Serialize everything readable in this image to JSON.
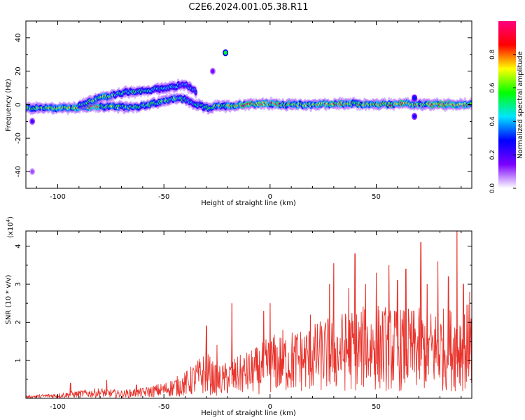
{
  "figure_title": "C2E6.2024.001.05.38.R11",
  "chart_data": [
    {
      "type": "heatmap",
      "xlabel": "Height of straight line (km)",
      "ylabel": "Frequency (Hz)",
      "xlim": [
        -115,
        95
      ],
      "ylim": [
        -50,
        50
      ],
      "xticks": [
        -100,
        -50,
        0,
        50
      ],
      "xtick_labels": [
        "-100",
        "-50",
        "0",
        "50"
      ],
      "yticks": [
        -40,
        -20,
        0,
        20,
        40
      ],
      "ytick_labels": [
        "-40",
        "-20",
        "0",
        "20",
        "40"
      ],
      "colorbar": {
        "label": "Normalized spectral amplitude",
        "range": [
          0,
          1
        ],
        "ticks": [
          0.0,
          0.2,
          0.4,
          0.6,
          0.8
        ],
        "tick_labels": [
          "0.0",
          "0.2",
          "0.4",
          "0.6",
          "0.8"
        ],
        "colormap": [
          "#ffffff",
          "#7b00ff",
          "#0000ff",
          "#00e5ff",
          "#00ff00",
          "#ffff00",
          "#ff0000",
          "#ff0080"
        ]
      },
      "traces": [
        {
          "x": [
            -115,
            -100,
            -90,
            -80,
            -70,
            -60,
            -50,
            -45,
            -40,
            -35,
            -30,
            -25,
            -20,
            -10,
            0,
            10,
            20,
            30,
            40,
            50,
            60,
            70,
            80,
            90,
            95
          ],
          "y": [
            -2,
            -2,
            -1.5,
            -1,
            -1.5,
            -1,
            2,
            4,
            3,
            0,
            -2,
            -1,
            -1,
            0.5,
            0.5,
            0,
            0,
            0.5,
            0.5,
            0,
            0.5,
            0,
            0,
            0,
            0
          ],
          "amp": [
            0.6,
            0.65,
            0.8,
            0.7,
            0.55,
            0.6,
            0.65,
            0.6,
            0.5,
            0.45,
            0.55,
            0.6,
            0.7,
            0.85,
            0.75,
            0.7,
            0.7,
            0.8,
            0.7,
            0.75,
            0.8,
            0.7,
            0.9,
            0.8,
            0.7
          ]
        },
        {
          "x": [
            -90,
            -80,
            -70,
            -60,
            -50,
            -40,
            -35
          ],
          "y": [
            0,
            4,
            7,
            8,
            10,
            12,
            8
          ],
          "amp": [
            0.5,
            0.65,
            0.55,
            0.5,
            0.45,
            0.4,
            0.35
          ]
        }
      ],
      "spots": [
        {
          "x": -21,
          "y": 31,
          "amp": 0.55
        },
        {
          "x": 68,
          "y": 4,
          "amp": 0.3
        },
        {
          "x": 68,
          "y": -7,
          "amp": 0.25
        },
        {
          "x": -112,
          "y": -10,
          "amp": 0.2
        },
        {
          "x": -112,
          "y": -40,
          "amp": 0.1
        },
        {
          "x": -27,
          "y": 20,
          "amp": 0.15
        }
      ]
    },
    {
      "type": "line",
      "xlabel": "Height of straight line (km)",
      "ylabel": "SNR (10 * v/v)",
      "yscale_label": "(x10",
      "yscale_exponent": "4",
      "yscale_close": ")",
      "xlim": [
        -115,
        95
      ],
      "ylim": [
        0,
        4.4
      ],
      "xticks": [
        -100,
        -50,
        0,
        50
      ],
      "xtick_labels": [
        "-100",
        "-50",
        "0",
        "50"
      ],
      "yticks": [
        1,
        2,
        3,
        4
      ],
      "ytick_labels": [
        "1",
        "2",
        "3",
        "4"
      ],
      "color": "#e8332c",
      "envelope": {
        "x": [
          -115,
          -100,
          -90,
          -80,
          -70,
          -60,
          -50,
          -40,
          -35,
          -30,
          -25,
          -20,
          -15,
          -10,
          -5,
          0,
          10,
          20,
          30,
          40,
          50,
          60,
          70,
          80,
          90,
          95
        ],
        "y": [
          0.05,
          0.1,
          0.15,
          0.2,
          0.15,
          0.2,
          0.3,
          0.5,
          0.7,
          0.9,
          0.6,
          0.7,
          0.8,
          0.9,
          1.0,
          1.2,
          1.3,
          1.4,
          1.6,
          1.7,
          1.8,
          1.7,
          1.7,
          1.7,
          1.8,
          1.8
        ]
      },
      "peaks": [
        {
          "x": -94,
          "y": 0.4
        },
        {
          "x": -77,
          "y": 0.48
        },
        {
          "x": -63,
          "y": 0.35
        },
        {
          "x": -30,
          "y": 1.9
        },
        {
          "x": -25,
          "y": 1.4
        },
        {
          "x": -18,
          "y": 2.5
        },
        {
          "x": 0,
          "y": 2.5
        },
        {
          "x": -3,
          "y": 2.3
        },
        {
          "x": 6,
          "y": 1.8
        },
        {
          "x": 19,
          "y": 2.2
        },
        {
          "x": 28,
          "y": 3.0
        },
        {
          "x": 30,
          "y": 3.55
        },
        {
          "x": 37,
          "y": 2.9
        },
        {
          "x": 40,
          "y": 3.8
        },
        {
          "x": 45,
          "y": 3.0
        },
        {
          "x": 50,
          "y": 3.3
        },
        {
          "x": 56,
          "y": 3.5
        },
        {
          "x": 60,
          "y": 3.1
        },
        {
          "x": 64,
          "y": 3.4
        },
        {
          "x": 71,
          "y": 4.1
        },
        {
          "x": 74,
          "y": 3.0
        },
        {
          "x": 79,
          "y": 3.6
        },
        {
          "x": 84,
          "y": 3.2
        },
        {
          "x": 88,
          "y": 4.4
        },
        {
          "x": 91,
          "y": 3.0
        },
        {
          "x": 94,
          "y": 2.8
        }
      ]
    }
  ]
}
